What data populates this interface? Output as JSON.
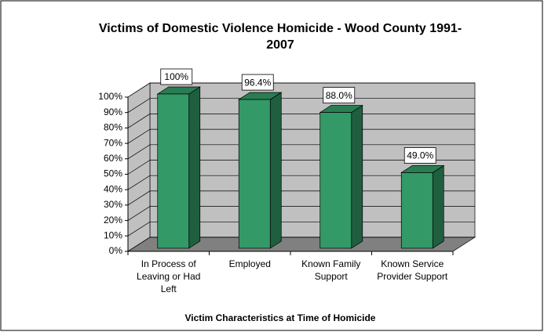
{
  "chart_data": {
    "type": "bar3d",
    "title": "Victims of Domestic Violence Homicide - Wood County 1991-2007",
    "x_label": "Victim Characteristics at Time of Homicide",
    "categories": [
      "In Process of Leaving or Had Left",
      "Employed",
      "Known Family Support",
      "Known Service Provider Support"
    ],
    "values": [
      100,
      96.4,
      88.0,
      49.0
    ],
    "value_labels": [
      "100%",
      "96.4%",
      "88.0%",
      "49.0%"
    ],
    "color": "#339966",
    "ylim": [
      0,
      100
    ],
    "yticks": [
      {
        "value": 0,
        "label": "0%"
      },
      {
        "value": 10,
        "label": "10%"
      },
      {
        "value": 20,
        "label": "20%"
      },
      {
        "value": 30,
        "label": "30%"
      },
      {
        "value": 40,
        "label": "40%"
      },
      {
        "value": 50,
        "label": "50%"
      },
      {
        "value": 60,
        "label": "60%"
      },
      {
        "value": 70,
        "label": "70%"
      },
      {
        "value": 80,
        "label": "80%"
      },
      {
        "value": 90,
        "label": "90%"
      },
      {
        "value": 100,
        "label": "100%"
      }
    ],
    "grid": true
  }
}
